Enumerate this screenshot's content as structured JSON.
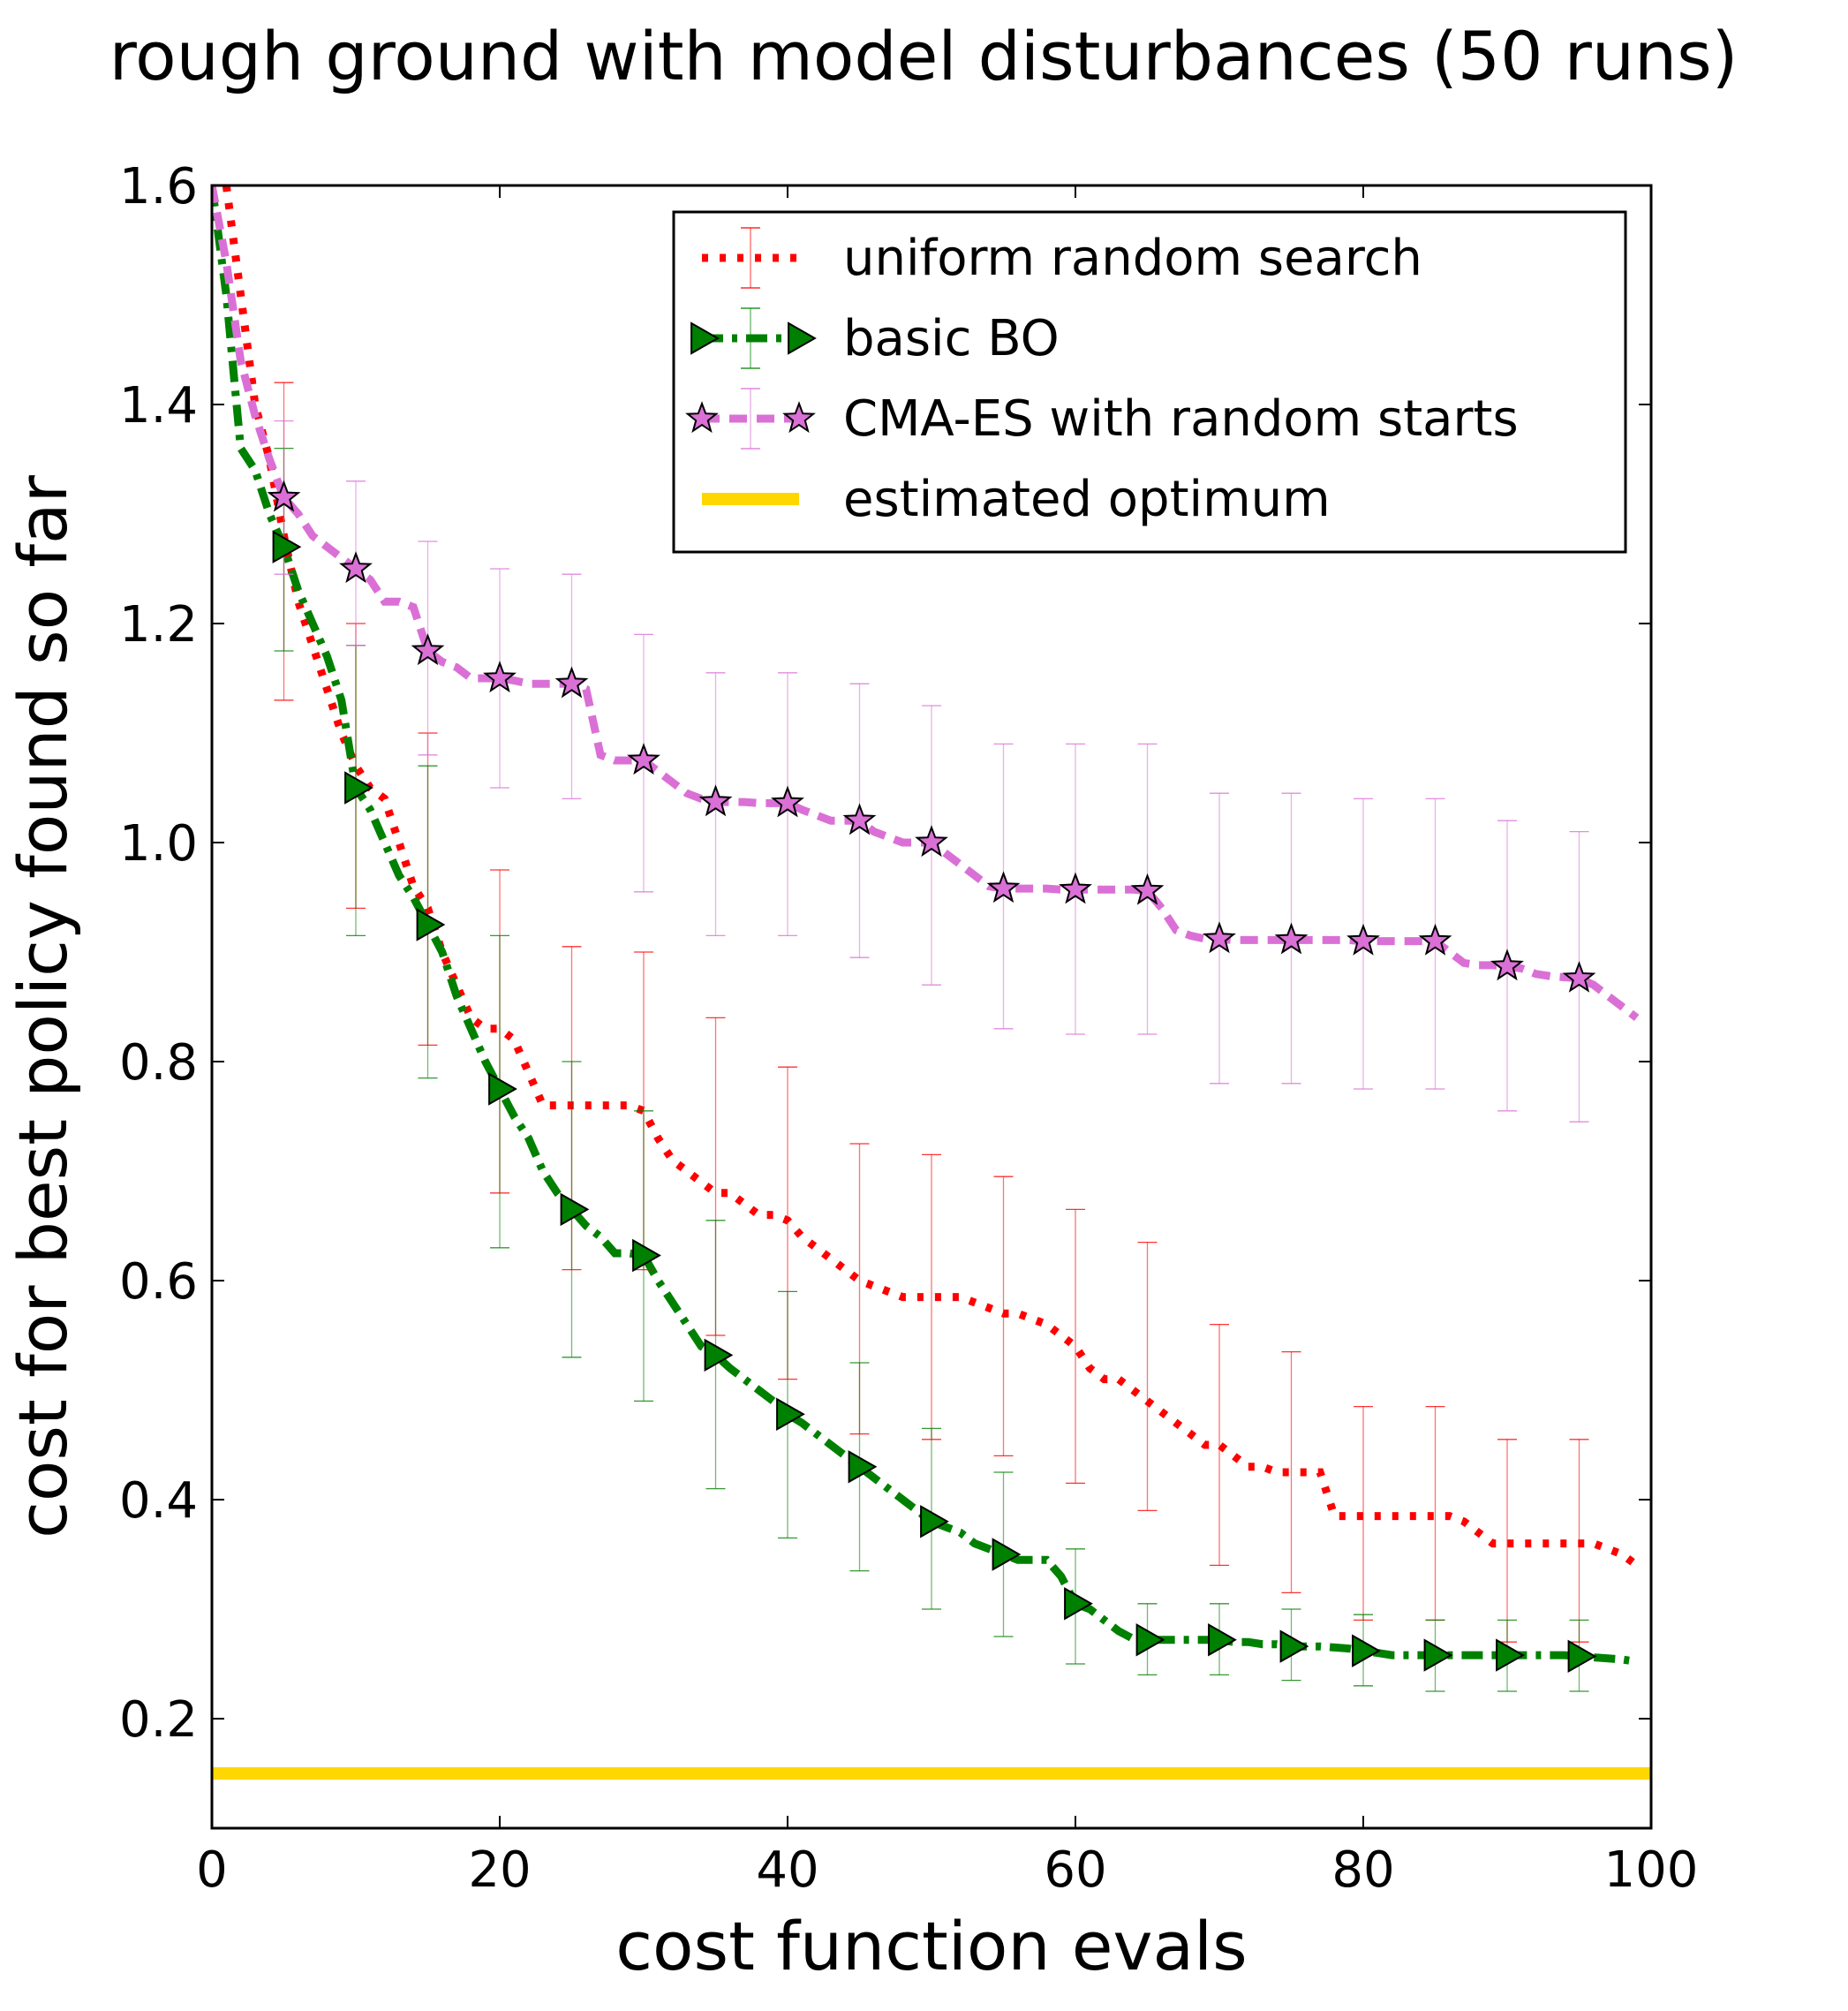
{
  "chart_data": {
    "type": "line",
    "title": "rough ground with model disturbances (50 runs)",
    "xlabel": "cost function evals",
    "ylabel": "cost for best policy found so far",
    "xlim": [
      0,
      100
    ],
    "ylim": [
      0.1,
      1.6
    ],
    "xticks": [
      "0",
      "20",
      "40",
      "60",
      "80",
      "100"
    ],
    "yticks": [
      "0.2",
      "0.4",
      "0.6",
      "0.8",
      "1.0",
      "1.2",
      "1.4",
      "1.6"
    ],
    "xtick_values": [
      0,
      20,
      40,
      60,
      80,
      100
    ],
    "ytick_values": [
      0.2,
      0.4,
      0.6,
      0.8,
      1.0,
      1.2,
      1.4,
      1.6
    ],
    "grid": false,
    "legend_position": "top-right",
    "series": [
      {
        "name": "uniform random search",
        "color": "#ff0000",
        "line_style": "dotted",
        "marker": "none",
        "x": [
          1,
          2,
          3,
          4,
          5,
          6,
          7,
          8,
          9,
          10,
          11,
          12,
          13,
          14,
          15,
          16,
          17,
          18,
          19,
          20,
          21,
          22,
          23,
          24,
          25,
          26,
          27,
          28,
          29,
          30,
          31,
          32,
          33,
          34,
          35,
          36,
          37,
          38,
          39,
          40,
          41,
          42,
          43,
          44,
          45,
          46,
          47,
          48,
          49,
          50,
          51,
          52,
          53,
          54,
          55,
          56,
          57,
          58,
          59,
          60,
          61,
          62,
          63,
          64,
          65,
          66,
          67,
          68,
          69,
          70,
          71,
          72,
          73,
          74,
          75,
          76,
          77,
          78,
          79,
          80,
          81,
          82,
          83,
          84,
          85,
          86,
          87,
          88,
          89,
          90,
          91,
          92,
          93,
          94,
          95,
          96,
          97,
          98,
          99
        ],
        "y": [
          1.6,
          1.5,
          1.4,
          1.35,
          1.28,
          1.22,
          1.18,
          1.14,
          1.1,
          1.07,
          1.05,
          1.04,
          1.0,
          0.96,
          0.94,
          0.9,
          0.87,
          0.84,
          0.83,
          0.83,
          0.82,
          0.79,
          0.76,
          0.76,
          0.76,
          0.76,
          0.76,
          0.76,
          0.76,
          0.755,
          0.73,
          0.71,
          0.7,
          0.69,
          0.68,
          0.68,
          0.67,
          0.66,
          0.66,
          0.655,
          0.64,
          0.63,
          0.62,
          0.61,
          0.6,
          0.595,
          0.59,
          0.585,
          0.585,
          0.585,
          0.585,
          0.585,
          0.58,
          0.575,
          0.57,
          0.57,
          0.565,
          0.56,
          0.55,
          0.54,
          0.52,
          0.51,
          0.51,
          0.5,
          0.49,
          0.48,
          0.47,
          0.46,
          0.45,
          0.45,
          0.44,
          0.43,
          0.43,
          0.425,
          0.425,
          0.425,
          0.425,
          0.385,
          0.385,
          0.385,
          0.385,
          0.385,
          0.385,
          0.385,
          0.385,
          0.385,
          0.38,
          0.37,
          0.36,
          0.36,
          0.36,
          0.36,
          0.36,
          0.36,
          0.36,
          0.36,
          0.355,
          0.35,
          0.34
        ],
        "error_bars": {
          "x": [
            5,
            10,
            15,
            20,
            25,
            30,
            35,
            40,
            45,
            50,
            55,
            60,
            65,
            70,
            75,
            80,
            85,
            90,
            95
          ],
          "upper": [
            1.42,
            1.2,
            1.1,
            0.975,
            0.905,
            0.9,
            0.84,
            0.795,
            0.725,
            0.715,
            0.695,
            0.665,
            0.635,
            0.56,
            0.535,
            0.485,
            0.485,
            0.455,
            0.455
          ],
          "lower": [
            1.13,
            0.94,
            0.815,
            0.68,
            0.61,
            0.61,
            0.55,
            0.51,
            0.46,
            0.455,
            0.44,
            0.415,
            0.39,
            0.34,
            0.315,
            0.29,
            0.29,
            0.27,
            0.27
          ]
        }
      },
      {
        "name": "basic BO",
        "color": "#008000",
        "line_style": "dash-dot",
        "marker": "triangle-right",
        "x": [
          0,
          1,
          2,
          3,
          4,
          5,
          6,
          7,
          8,
          9,
          10,
          11,
          12,
          13,
          14,
          15,
          16,
          17,
          18,
          19,
          20,
          21,
          22,
          23,
          24,
          25,
          26,
          27,
          28,
          29,
          30,
          31,
          32,
          33,
          34,
          35,
          36,
          37,
          38,
          39,
          40,
          41,
          42,
          43,
          44,
          45,
          46,
          47,
          48,
          49,
          50,
          51,
          52,
          53,
          54,
          55,
          56,
          57,
          58,
          59,
          60,
          61,
          62,
          63,
          64,
          65,
          66,
          67,
          68,
          69,
          70,
          71,
          72,
          73,
          74,
          75,
          76,
          77,
          78,
          79,
          80,
          81,
          82,
          83,
          84,
          85,
          86,
          87,
          88,
          89,
          90,
          91,
          92,
          93,
          94,
          95,
          96,
          97,
          98,
          99
        ],
        "y": [
          1.6,
          1.5,
          1.36,
          1.34,
          1.3,
          1.27,
          1.23,
          1.2,
          1.17,
          1.13,
          1.05,
          1.03,
          1.0,
          0.97,
          0.95,
          0.925,
          0.9,
          0.86,
          0.83,
          0.8,
          0.775,
          0.75,
          0.73,
          0.7,
          0.68,
          0.665,
          0.65,
          0.64,
          0.625,
          0.625,
          0.623,
          0.6,
          0.58,
          0.56,
          0.54,
          0.532,
          0.52,
          0.51,
          0.5,
          0.49,
          0.478,
          0.47,
          0.46,
          0.45,
          0.44,
          0.43,
          0.42,
          0.41,
          0.4,
          0.39,
          0.38,
          0.375,
          0.37,
          0.36,
          0.355,
          0.35,
          0.345,
          0.345,
          0.345,
          0.33,
          0.305,
          0.3,
          0.29,
          0.28,
          0.273,
          0.272,
          0.272,
          0.272,
          0.272,
          0.272,
          0.272,
          0.27,
          0.27,
          0.268,
          0.268,
          0.266,
          0.266,
          0.266,
          0.265,
          0.264,
          0.262,
          0.26,
          0.258,
          0.258,
          0.258,
          0.258,
          0.258,
          0.258,
          0.258,
          0.258,
          0.258,
          0.258,
          0.258,
          0.258,
          0.258,
          0.257,
          0.256,
          0.255,
          0.254,
          0.252
        ],
        "marker_x": [
          5,
          10,
          15,
          20,
          25,
          30,
          35,
          40,
          45,
          50,
          55,
          60,
          65,
          70,
          75,
          80,
          85,
          90,
          95
        ],
        "error_bars": {
          "x": [
            5,
            10,
            15,
            20,
            25,
            30,
            35,
            40,
            45,
            50,
            55,
            60,
            65,
            70,
            75,
            80,
            85,
            90,
            95
          ],
          "upper": [
            1.36,
            1.18,
            1.07,
            0.915,
            0.8,
            0.755,
            0.655,
            0.59,
            0.525,
            0.465,
            0.425,
            0.355,
            0.305,
            0.305,
            0.3,
            0.295,
            0.29,
            0.29,
            0.29
          ],
          "lower": [
            1.175,
            0.915,
            0.785,
            0.63,
            0.53,
            0.49,
            0.41,
            0.365,
            0.335,
            0.3,
            0.275,
            0.25,
            0.24,
            0.24,
            0.235,
            0.23,
            0.225,
            0.225,
            0.225
          ]
        }
      },
      {
        "name": "CMA-ES with random starts",
        "color": "#da70d6",
        "line_style": "dashed",
        "marker": "star",
        "x": [
          0,
          1,
          2,
          3,
          4,
          5,
          6,
          7,
          8,
          9,
          10,
          11,
          12,
          13,
          14,
          15,
          16,
          17,
          18,
          19,
          20,
          21,
          22,
          23,
          24,
          25,
          26,
          27,
          28,
          29,
          30,
          31,
          32,
          33,
          34,
          35,
          36,
          37,
          38,
          39,
          40,
          41,
          42,
          43,
          44,
          45,
          46,
          47,
          48,
          49,
          50,
          51,
          52,
          53,
          54,
          55,
          56,
          57,
          58,
          59,
          60,
          61,
          62,
          63,
          64,
          65,
          66,
          67,
          68,
          69,
          70,
          71,
          72,
          73,
          74,
          75,
          76,
          77,
          78,
          79,
          80,
          81,
          82,
          83,
          84,
          85,
          86,
          87,
          88,
          89,
          90,
          91,
          92,
          93,
          94,
          95,
          96,
          97,
          98,
          99
        ],
        "y": [
          1.6,
          1.53,
          1.44,
          1.39,
          1.35,
          1.315,
          1.3,
          1.28,
          1.27,
          1.26,
          1.25,
          1.24,
          1.22,
          1.22,
          1.215,
          1.175,
          1.165,
          1.16,
          1.15,
          1.15,
          1.15,
          1.148,
          1.145,
          1.145,
          1.145,
          1.145,
          1.14,
          1.08,
          1.075,
          1.075,
          1.075,
          1.065,
          1.055,
          1.045,
          1.04,
          1.037,
          1.037,
          1.037,
          1.036,
          1.036,
          1.036,
          1.03,
          1.025,
          1.02,
          1.02,
          1.02,
          1.01,
          1.005,
          1.0,
          1.0,
          1.0,
          0.99,
          0.98,
          0.97,
          0.96,
          0.958,
          0.958,
          0.958,
          0.958,
          0.957,
          0.957,
          0.957,
          0.957,
          0.957,
          0.957,
          0.956,
          0.94,
          0.92,
          0.915,
          0.912,
          0.912,
          0.911,
          0.911,
          0.911,
          0.911,
          0.911,
          0.911,
          0.911,
          0.911,
          0.911,
          0.91,
          0.91,
          0.91,
          0.91,
          0.91,
          0.91,
          0.9,
          0.89,
          0.888,
          0.888,
          0.887,
          0.885,
          0.88,
          0.878,
          0.877,
          0.876,
          0.87,
          0.86,
          0.85,
          0.84
        ],
        "marker_x": [
          5,
          10,
          15,
          20,
          25,
          30,
          35,
          40,
          45,
          50,
          55,
          60,
          65,
          70,
          75,
          80,
          85,
          90,
          95
        ],
        "error_bars": {
          "x": [
            5,
            10,
            15,
            20,
            25,
            30,
            35,
            40,
            45,
            50,
            55,
            60,
            65,
            70,
            75,
            80,
            85,
            90,
            95
          ],
          "upper": [
            1.385,
            1.33,
            1.275,
            1.25,
            1.245,
            1.19,
            1.155,
            1.155,
            1.145,
            1.125,
            1.09,
            1.09,
            1.09,
            1.045,
            1.045,
            1.04,
            1.04,
            1.02,
            1.01
          ],
          "lower": [
            1.245,
            1.18,
            1.08,
            1.05,
            1.04,
            0.955,
            0.915,
            0.915,
            0.895,
            0.87,
            0.83,
            0.825,
            0.825,
            0.78,
            0.78,
            0.775,
            0.775,
            0.755,
            0.745
          ]
        }
      },
      {
        "name": "estimated optimum",
        "color": "#ffd700",
        "line_style": "solid",
        "marker": "none",
        "x": [
          0,
          100
        ],
        "y": [
          0.15,
          0.15
        ]
      }
    ]
  }
}
